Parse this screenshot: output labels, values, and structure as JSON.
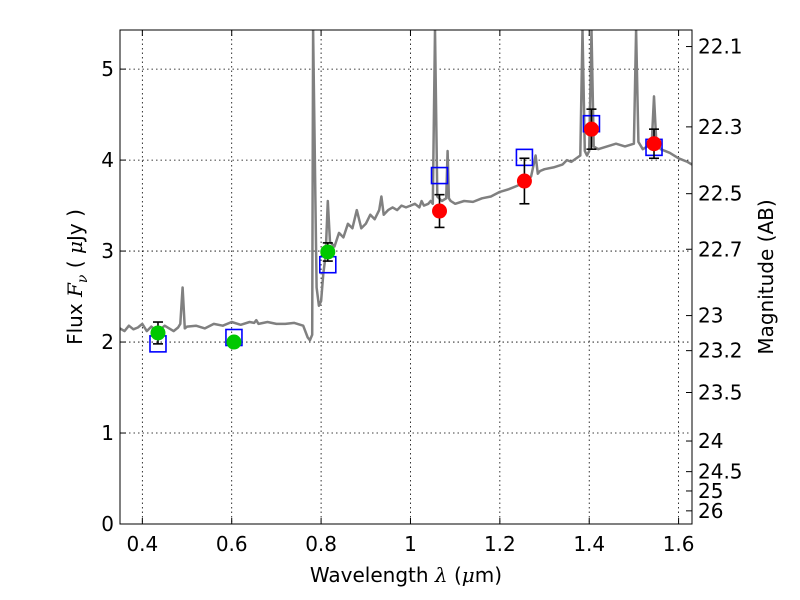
{
  "chart_data": {
    "type": "line",
    "xlabel": {
      "text": "Wavelength",
      "symbol": "λ",
      "unit_open": "(",
      "unit_mu": "μ",
      "unit_rest": "m)"
    },
    "ylabel": {
      "text": "Flux",
      "symbol": "F",
      "subscript": "ν",
      "unit_open": "(",
      "unit_mu": "μ",
      "unit_rest": "Jy",
      "unit_close": ")"
    },
    "y2label": "Magnitude (AB)",
    "xlim": [
      0.35,
      1.63
    ],
    "ylim": [
      0,
      5.43
    ],
    "grid": true,
    "x_ticks": [
      0.4,
      0.6,
      0.8,
      1.0,
      1.2,
      1.4,
      1.6
    ],
    "x_tick_labels": [
      "0.4",
      "0.6",
      "0.8",
      "1",
      "1.2",
      "1.4",
      "1.6"
    ],
    "y_ticks": [
      0,
      1,
      2,
      3,
      4,
      5
    ],
    "y_tick_labels": [
      "0",
      "1",
      "2",
      "3",
      "4",
      "5"
    ],
    "mag_ticks": [
      22.1,
      22.3,
      22.5,
      22.7,
      23,
      23.2,
      23.5,
      24,
      24.5,
      25,
      26
    ],
    "mag_tick_labels": [
      "22.1",
      "22.3",
      "22.5",
      "22.7",
      "23",
      "23.2",
      "23.5",
      "24",
      "24.5",
      "25",
      "26"
    ],
    "colors": {
      "model": "#808080",
      "box": "#0000ff",
      "green": "#00c800",
      "red": "#ff0000",
      "errorbar": "#000000"
    },
    "series": [
      {
        "type": "line",
        "style": "model-spectrum",
        "points": [
          [
            0.35,
            2.15
          ],
          [
            0.36,
            2.12
          ],
          [
            0.37,
            2.18
          ],
          [
            0.38,
            2.14
          ],
          [
            0.39,
            2.16
          ],
          [
            0.4,
            2.2
          ],
          [
            0.41,
            2.12
          ],
          [
            0.42,
            2.17
          ],
          [
            0.43,
            2.13
          ],
          [
            0.44,
            2.14
          ],
          [
            0.45,
            2.18
          ],
          [
            0.46,
            2.15
          ],
          [
            0.47,
            2.12
          ],
          [
            0.48,
            2.16
          ],
          [
            0.485,
            2.2
          ],
          [
            0.49,
            2.6
          ],
          [
            0.495,
            2.15
          ],
          [
            0.5,
            2.17
          ],
          [
            0.52,
            2.18
          ],
          [
            0.54,
            2.15
          ],
          [
            0.56,
            2.2
          ],
          [
            0.58,
            2.18
          ],
          [
            0.6,
            2.22
          ],
          [
            0.62,
            2.19
          ],
          [
            0.64,
            2.22
          ],
          [
            0.65,
            2.21
          ],
          [
            0.655,
            2.24
          ],
          [
            0.66,
            2.2
          ],
          [
            0.68,
            2.22
          ],
          [
            0.7,
            2.2
          ],
          [
            0.72,
            2.2
          ],
          [
            0.74,
            2.21
          ],
          [
            0.76,
            2.18
          ],
          [
            0.77,
            2.05
          ],
          [
            0.775,
            2.02
          ],
          [
            0.78,
            2.08
          ],
          [
            0.782,
            5.43
          ],
          [
            0.79,
            2.6
          ],
          [
            0.795,
            2.4
          ],
          [
            0.8,
            2.45
          ],
          [
            0.805,
            2.75
          ],
          [
            0.81,
            2.95
          ],
          [
            0.815,
            3.55
          ],
          [
            0.82,
            3.1
          ],
          [
            0.83,
            3.05
          ],
          [
            0.84,
            3.2
          ],
          [
            0.85,
            3.15
          ],
          [
            0.86,
            3.3
          ],
          [
            0.87,
            3.25
          ],
          [
            0.88,
            3.45
          ],
          [
            0.89,
            3.25
          ],
          [
            0.9,
            3.3
          ],
          [
            0.91,
            3.4
          ],
          [
            0.92,
            3.35
          ],
          [
            0.93,
            3.45
          ],
          [
            0.935,
            3.6
          ],
          [
            0.94,
            3.4
          ],
          [
            0.95,
            3.45
          ],
          [
            0.96,
            3.48
          ],
          [
            0.97,
            3.45
          ],
          [
            0.98,
            3.5
          ],
          [
            0.99,
            3.48
          ],
          [
            1.0,
            3.5
          ],
          [
            1.01,
            3.52
          ],
          [
            1.02,
            3.48
          ],
          [
            1.025,
            3.55
          ],
          [
            1.03,
            3.5
          ],
          [
            1.04,
            3.52
          ],
          [
            1.045,
            3.55
          ],
          [
            1.05,
            3.52
          ],
          [
            1.055,
            5.43
          ],
          [
            1.06,
            3.6
          ],
          [
            1.07,
            3.55
          ],
          [
            1.08,
            3.58
          ],
          [
            1.083,
            4.1
          ],
          [
            1.086,
            3.58
          ],
          [
            1.09,
            3.55
          ],
          [
            1.1,
            3.52
          ],
          [
            1.12,
            3.55
          ],
          [
            1.14,
            3.54
          ],
          [
            1.16,
            3.58
          ],
          [
            1.18,
            3.6
          ],
          [
            1.2,
            3.65
          ],
          [
            1.22,
            3.68
          ],
          [
            1.24,
            3.72
          ],
          [
            1.26,
            3.78
          ],
          [
            1.27,
            3.82
          ],
          [
            1.28,
            4.05
          ],
          [
            1.285,
            3.85
          ],
          [
            1.29,
            3.88
          ],
          [
            1.3,
            3.9
          ],
          [
            1.32,
            3.92
          ],
          [
            1.34,
            3.95
          ],
          [
            1.35,
            4.0
          ],
          [
            1.36,
            3.98
          ],
          [
            1.38,
            4.05
          ],
          [
            1.385,
            5.43
          ],
          [
            1.39,
            4.1
          ],
          [
            1.395,
            4.05
          ],
          [
            1.4,
            4.1
          ],
          [
            1.405,
            5.43
          ],
          [
            1.41,
            4.15
          ],
          [
            1.42,
            4.12
          ],
          [
            1.44,
            4.15
          ],
          [
            1.46,
            4.18
          ],
          [
            1.48,
            4.15
          ],
          [
            1.5,
            4.18
          ],
          [
            1.505,
            5.43
          ],
          [
            1.51,
            4.2
          ],
          [
            1.52,
            4.12
          ],
          [
            1.53,
            4.15
          ],
          [
            1.54,
            4.2
          ],
          [
            1.545,
            4.7
          ],
          [
            1.55,
            4.2
          ],
          [
            1.56,
            4.12
          ],
          [
            1.58,
            4.08
          ],
          [
            1.6,
            4.02
          ],
          [
            1.62,
            3.98
          ],
          [
            1.63,
            3.95
          ]
        ]
      },
      {
        "type": "scatter",
        "marker": "square-open",
        "points": [
          [
            0.435,
            1.98
          ],
          [
            0.605,
            2.05
          ],
          [
            0.815,
            2.85
          ],
          [
            1.065,
            3.83
          ],
          [
            1.255,
            4.03
          ],
          [
            1.405,
            4.4
          ],
          [
            1.545,
            4.14
          ]
        ]
      },
      {
        "type": "scatter",
        "marker": "circle-green",
        "points": [
          [
            0.435,
            2.1,
            0.12
          ],
          [
            0.605,
            2.0,
            0.04
          ],
          [
            0.815,
            2.99,
            0.1
          ]
        ]
      },
      {
        "type": "scatter",
        "marker": "circle-red",
        "points": [
          [
            1.065,
            3.44,
            0.18
          ],
          [
            1.255,
            3.77,
            0.25
          ],
          [
            1.405,
            4.34,
            0.22
          ],
          [
            1.545,
            4.18,
            0.16
          ]
        ]
      }
    ]
  }
}
